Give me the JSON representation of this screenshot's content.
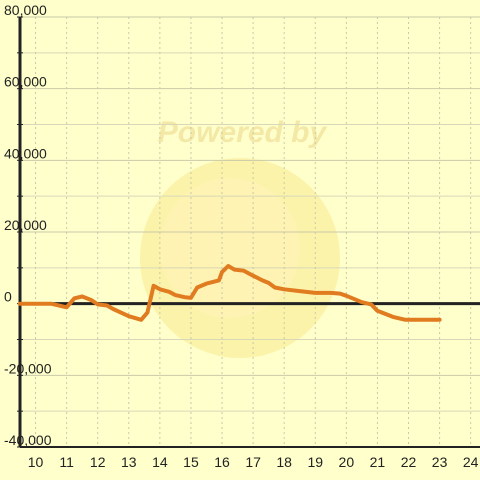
{
  "chart_data": {
    "type": "line",
    "title": "",
    "xlabel": "",
    "ylabel": "",
    "xlim": [
      9.5,
      24.3
    ],
    "ylim": [
      -40000,
      80000
    ],
    "x_ticks": [
      "10",
      "11",
      "12",
      "13",
      "14",
      "15",
      "16",
      "17",
      "18",
      "19",
      "20",
      "21",
      "22",
      "23",
      "24"
    ],
    "y_ticks": [
      "80,000",
      "60,000",
      "40,000",
      "20,000",
      "0",
      "-20,000",
      "-40,000"
    ],
    "grid": true,
    "series": [
      {
        "color": "#e07b20",
        "x": [
          9.5,
          10.5,
          11.0,
          11.25,
          11.5,
          11.8,
          12.0,
          12.3,
          12.5,
          13.0,
          13.4,
          13.6,
          13.8,
          14.0,
          14.3,
          14.5,
          14.8,
          15.0,
          15.2,
          15.5,
          15.9,
          16.0,
          16.2,
          16.4,
          16.7,
          17.0,
          17.3,
          17.5,
          17.7,
          18.0,
          18.5,
          19.0,
          19.5,
          19.8,
          20.0,
          20.5,
          20.8,
          21.0,
          21.5,
          21.9,
          22.0,
          22.5,
          23.0
        ],
        "y": [
          0,
          0,
          -1000,
          1500,
          2000,
          1000,
          -200,
          -500,
          -1500,
          -3500,
          -4500,
          -2500,
          5000,
          4000,
          3300,
          2400,
          1800,
          1600,
          4500,
          5600,
          6500,
          8800,
          10500,
          9500,
          9200,
          7800,
          6500,
          5800,
          4500,
          4000,
          3500,
          3000,
          3000,
          2800,
          2200,
          400,
          -200,
          -2000,
          -3700,
          -4500,
          -4500,
          -4500,
          -4500
        ]
      }
    ]
  },
  "watermark": {
    "text": "Powered by",
    "color": "#f5e58a"
  }
}
